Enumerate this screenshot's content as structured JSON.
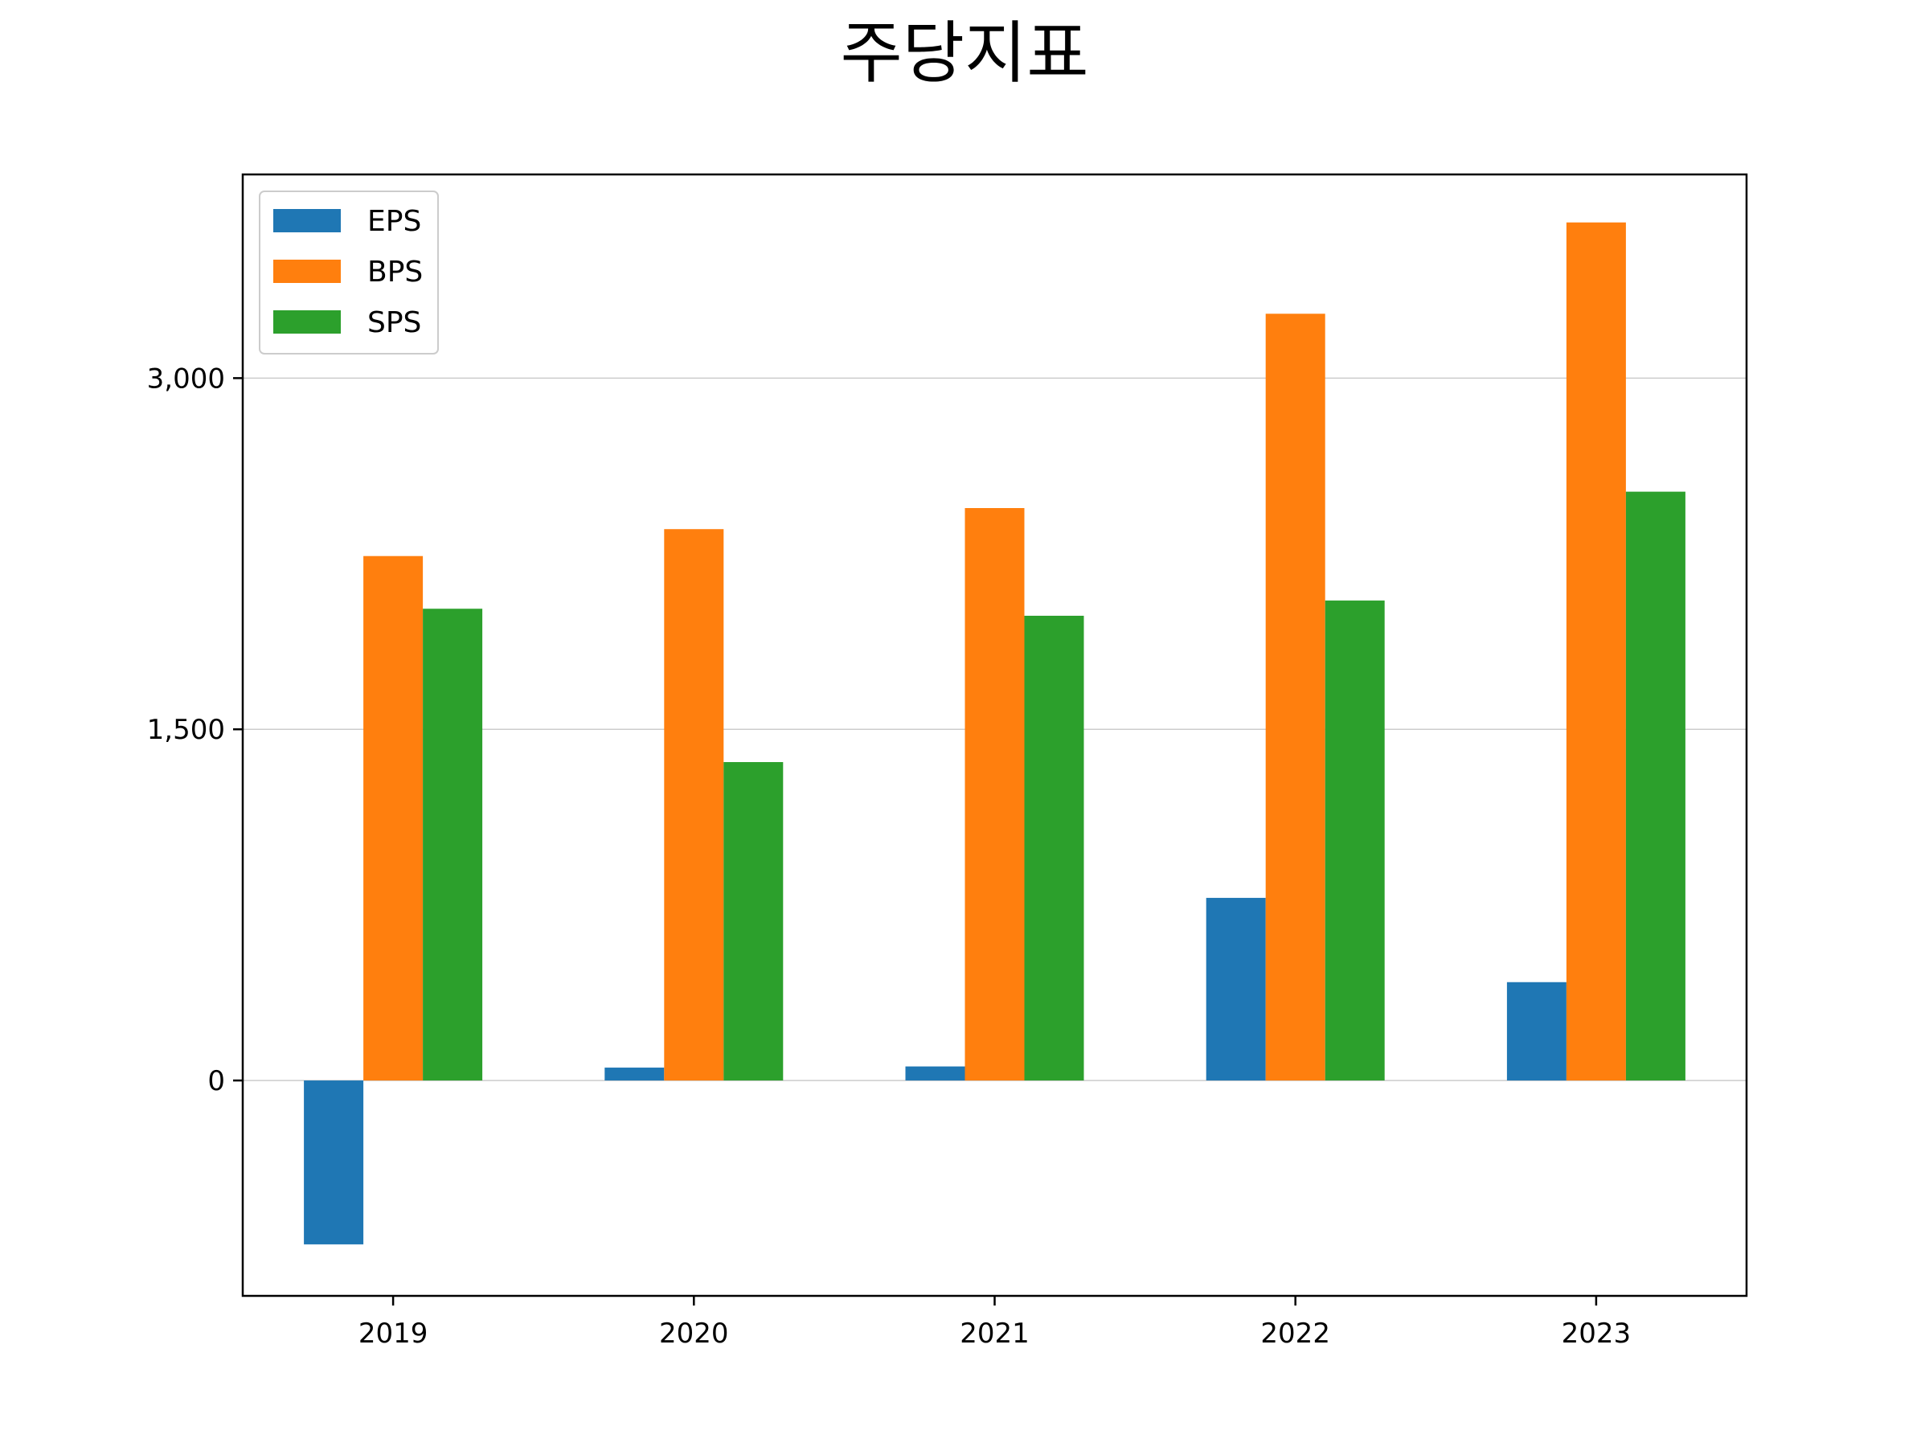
{
  "chart_data": {
    "type": "bar",
    "title": "주당지표",
    "xlabel": "",
    "ylabel": "",
    "categories": [
      "2019",
      "2020",
      "2021",
      "2022",
      "2023"
    ],
    "series": [
      {
        "name": "EPS",
        "color": "#1f77b4",
        "values": [
          -700,
          55,
          60,
          780,
          420
        ]
      },
      {
        "name": "BPS",
        "color": "#ff7f0e",
        "values": [
          2240,
          2355,
          2445,
          3275,
          3665
        ]
      },
      {
        "name": "SPS",
        "color": "#2ca02c",
        "values": [
          2015,
          1360,
          1985,
          2050,
          2515
        ]
      }
    ],
    "ylim": [
      -920,
      3870
    ],
    "yticks": [
      0,
      1500,
      3000
    ],
    "ytick_labels": [
      "0",
      "1,500",
      "3,000"
    ],
    "grid": "y",
    "legend": "upper-left"
  }
}
